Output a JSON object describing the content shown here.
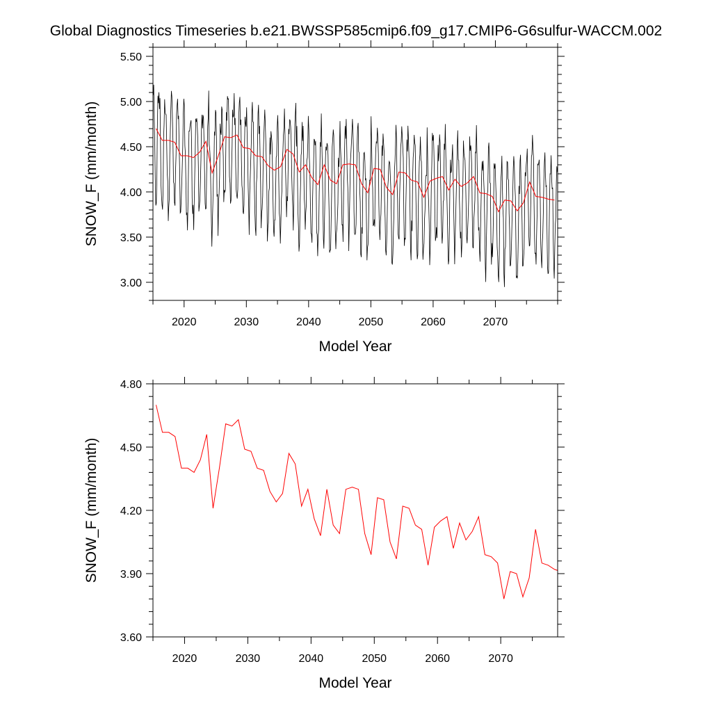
{
  "figure": {
    "title": "Global Diagnostics Timeseries b.e21.BWSSP585cmip6.f09_g17.CMIP6-G6sulfur-WACCM.002"
  },
  "colors": {
    "monthly": "#000000",
    "annual": "#ff0000"
  },
  "chart_data": [
    {
      "type": "line",
      "xlabel": "Model Year",
      "ylabel": "SNOW_F (mm/month)",
      "xlim": [
        2015,
        2080
      ],
      "ylim": [
        2.8,
        5.6
      ],
      "xticks": [
        2020,
        2030,
        2040,
        2050,
        2060,
        2070
      ],
      "xtick_labels": [
        "2020",
        "2030",
        "2040",
        "2050",
        "2060",
        "2070"
      ],
      "yticks": [
        3.0,
        3.5,
        4.0,
        4.5,
        5.0,
        5.5
      ],
      "ytick_labels": [
        "3.00",
        "3.50",
        "4.00",
        "4.50",
        "5.00",
        "5.50"
      ],
      "grid": false,
      "series": [
        {
          "kind": "monthly",
          "color": "#000000",
          "x_start": 2015.04,
          "x_step": 0.08333,
          "seasonal_cycle": [
            0.42,
            0.3,
            0.02,
            -0.35,
            -0.62,
            -0.74,
            -0.66,
            -0.45,
            -0.1,
            0.22,
            0.33,
            0.42
          ]
        },
        {
          "kind": "annual",
          "color": "#ff0000",
          "x": [
            2015.5,
            2016.5,
            2017.5,
            2018.5,
            2019.5,
            2020.5,
            2021.5,
            2022.5,
            2023.5,
            2024.5,
            2025.5,
            2026.5,
            2027.5,
            2028.5,
            2029.5,
            2030.5,
            2031.5,
            2032.5,
            2033.5,
            2034.5,
            2035.5,
            2036.5,
            2037.5,
            2038.5,
            2039.5,
            2040.5,
            2041.5,
            2042.5,
            2043.5,
            2044.5,
            2045.5,
            2046.5,
            2047.5,
            2048.5,
            2049.5,
            2050.5,
            2051.5,
            2052.5,
            2053.5,
            2054.5,
            2055.5,
            2056.5,
            2057.5,
            2058.5,
            2059.5,
            2060.5,
            2061.5,
            2062.5,
            2063.5,
            2064.5,
            2065.5,
            2066.5,
            2067.5,
            2068.5,
            2069.5,
            2070.5,
            2071.5,
            2072.5,
            2073.5,
            2074.5,
            2075.5,
            2076.5,
            2077.5,
            2078.5,
            2079.5
          ],
          "values": [
            4.7,
            4.57,
            4.57,
            4.55,
            4.4,
            4.4,
            4.38,
            4.44,
            4.56,
            4.21,
            4.4,
            4.61,
            4.6,
            4.63,
            4.49,
            4.48,
            4.4,
            4.39,
            4.29,
            4.24,
            4.28,
            4.47,
            4.42,
            4.22,
            4.3,
            4.16,
            4.08,
            4.3,
            4.13,
            4.09,
            4.3,
            4.31,
            4.3,
            4.09,
            3.99,
            4.26,
            4.25,
            4.05,
            3.97,
            4.22,
            4.21,
            4.13,
            4.11,
            3.94,
            4.12,
            4.15,
            4.17,
            4.02,
            4.14,
            4.06,
            4.1,
            4.17,
            3.99,
            3.98,
            3.95,
            3.78,
            3.91,
            3.9,
            3.79,
            3.88,
            4.11,
            3.95,
            3.94,
            3.92,
            3.91
          ]
        }
      ]
    },
    {
      "type": "line",
      "xlabel": "Model Year",
      "ylabel": "SNOW_F (mm/month)",
      "xlim": [
        2015,
        2079
      ],
      "ylim": [
        3.6,
        4.8
      ],
      "xticks": [
        2020,
        2030,
        2040,
        2050,
        2060,
        2070
      ],
      "xtick_labels": [
        "2020",
        "2030",
        "2040",
        "2050",
        "2060",
        "2070"
      ],
      "yticks": [
        3.6,
        3.9,
        4.2,
        4.5,
        4.8
      ],
      "ytick_labels": [
        "3.60",
        "3.90",
        "4.20",
        "4.50",
        "4.80"
      ],
      "grid": false,
      "series": [
        {
          "kind": "annual",
          "color": "#ff0000",
          "x": [
            2015.5,
            2016.5,
            2017.5,
            2018.5,
            2019.5,
            2020.5,
            2021.5,
            2022.5,
            2023.5,
            2024.5,
            2025.5,
            2026.5,
            2027.5,
            2028.5,
            2029.5,
            2030.5,
            2031.5,
            2032.5,
            2033.5,
            2034.5,
            2035.5,
            2036.5,
            2037.5,
            2038.5,
            2039.5,
            2040.5,
            2041.5,
            2042.5,
            2043.5,
            2044.5,
            2045.5,
            2046.5,
            2047.5,
            2048.5,
            2049.5,
            2050.5,
            2051.5,
            2052.5,
            2053.5,
            2054.5,
            2055.5,
            2056.5,
            2057.5,
            2058.5,
            2059.5,
            2060.5,
            2061.5,
            2062.5,
            2063.5,
            2064.5,
            2065.5,
            2066.5,
            2067.5,
            2068.5,
            2069.5,
            2070.5,
            2071.5,
            2072.5,
            2073.5,
            2074.5,
            2075.5,
            2076.5,
            2077.5,
            2078.5,
            2079.5
          ],
          "values": [
            4.7,
            4.57,
            4.57,
            4.55,
            4.4,
            4.4,
            4.38,
            4.44,
            4.56,
            4.21,
            4.4,
            4.61,
            4.6,
            4.63,
            4.49,
            4.48,
            4.4,
            4.39,
            4.29,
            4.24,
            4.28,
            4.47,
            4.42,
            4.22,
            4.3,
            4.16,
            4.08,
            4.3,
            4.13,
            4.09,
            4.3,
            4.31,
            4.3,
            4.09,
            3.99,
            4.26,
            4.25,
            4.05,
            3.97,
            4.22,
            4.21,
            4.13,
            4.11,
            3.94,
            4.12,
            4.15,
            4.17,
            4.02,
            4.14,
            4.06,
            4.1,
            4.17,
            3.99,
            3.98,
            3.95,
            3.78,
            3.91,
            3.9,
            3.79,
            3.88,
            4.11,
            3.95,
            3.94,
            3.92,
            3.91
          ]
        }
      ]
    }
  ]
}
